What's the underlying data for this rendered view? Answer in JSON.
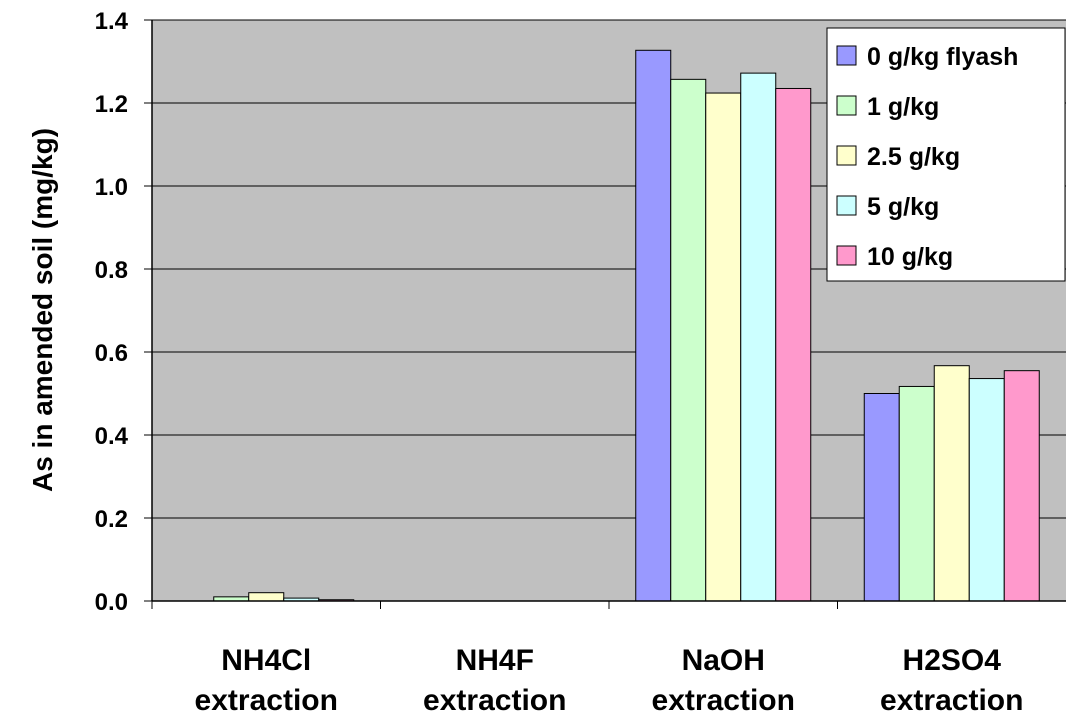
{
  "chart_data": {
    "type": "bar",
    "title": "",
    "xlabel": "",
    "ylabel": "As in amended soil (mg/kg)",
    "ylim": [
      0,
      1.4
    ],
    "yticks": [
      "0.0",
      "0.2",
      "0.4",
      "0.6",
      "0.8",
      "1.0",
      "1.2",
      "1.4"
    ],
    "grid": true,
    "legend_position": "top-right",
    "categories": [
      [
        "NH4Cl",
        "extraction"
      ],
      [
        "NH4F",
        "extraction"
      ],
      [
        "NaOH",
        "extraction"
      ],
      [
        "H2SO4",
        "extraction"
      ]
    ],
    "series": [
      {
        "name": "0 g/kg flyash",
        "color": "#9999ff",
        "values": [
          0.0,
          0.0,
          1.327,
          0.5
        ]
      },
      {
        "name": "1 g/kg",
        "color": "#ccffcc",
        "values": [
          0.01,
          0.0,
          1.257,
          0.517
        ]
      },
      {
        "name": "2.5 g/kg",
        "color": "#ffffcc",
        "values": [
          0.02,
          0.0,
          1.224,
          0.567
        ]
      },
      {
        "name": "5 g/kg",
        "color": "#ccffff",
        "values": [
          0.007,
          0.0,
          1.272,
          0.536
        ]
      },
      {
        "name": "10 g/kg",
        "color": "#ff99cc",
        "values": [
          0.003,
          0.0,
          1.235,
          0.555
        ]
      }
    ]
  },
  "colors": {
    "plot_background": "#c0c0c0",
    "gridline": "#000000",
    "bar_outline": "#000000"
  }
}
